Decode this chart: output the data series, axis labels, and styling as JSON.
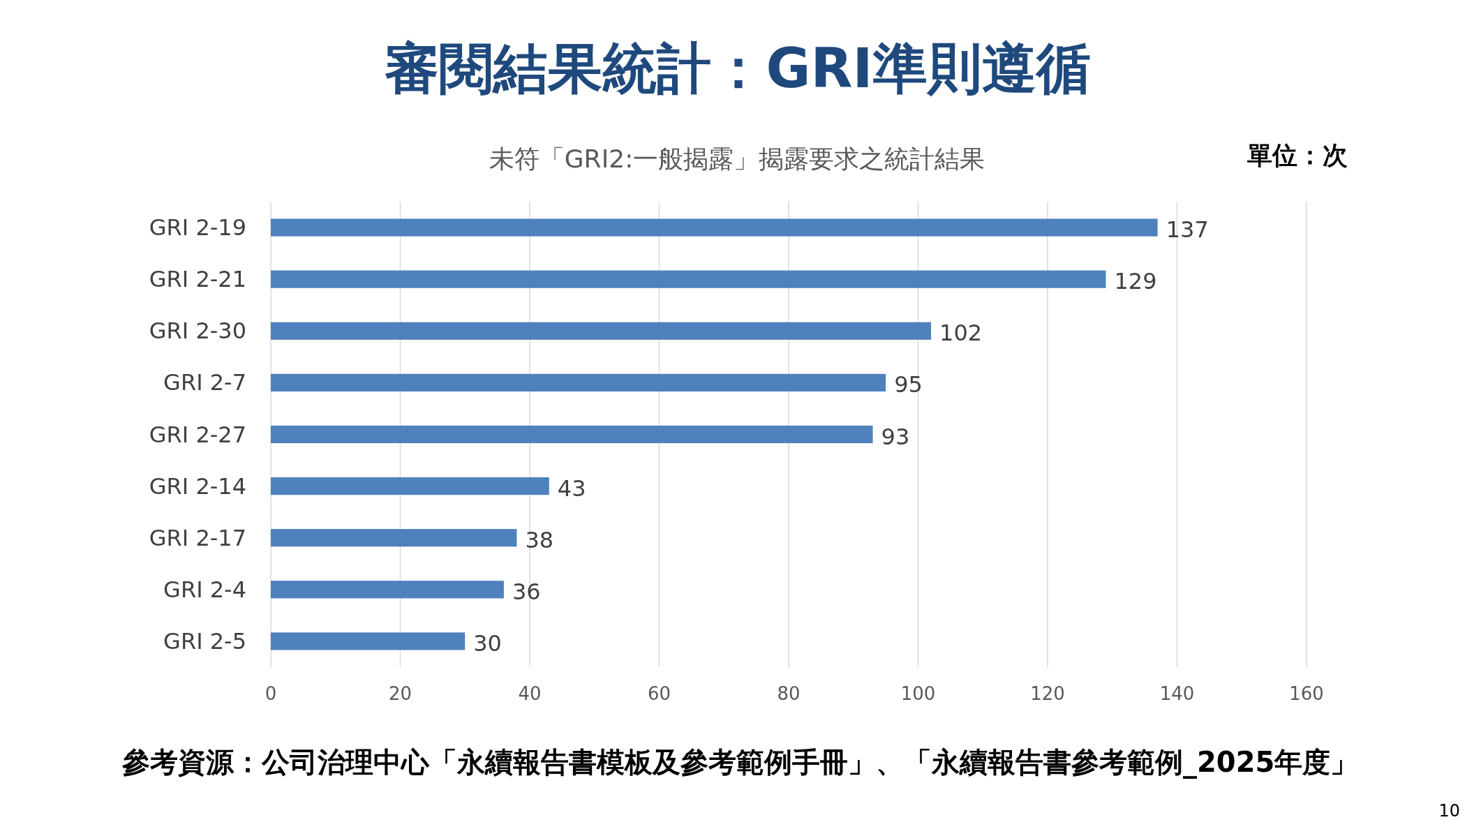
{
  "chart_data": {
    "type": "bar",
    "orientation": "horizontal",
    "title": "審閱結果統計：GRI準則遵循",
    "subtitle": "未符「GRI2:一般揭露」揭露要求之統計結果",
    "categories": [
      "GRI 2-19",
      "GRI 2-21",
      "GRI 2-30",
      "GRI 2-7",
      "GRI 2-27",
      "GRI 2-14",
      "GRI 2-17",
      "GRI 2-4",
      "GRI 2-5"
    ],
    "values": [
      137,
      129,
      102,
      95,
      93,
      43,
      38,
      36,
      30
    ],
    "color": "#4f81bd",
    "xlim": [
      0,
      160
    ],
    "xticks": [
      0,
      20,
      40,
      60,
      80,
      100,
      120,
      140,
      160
    ],
    "grid": "x",
    "data_labels": true,
    "annotations": [
      "單位：次",
      "參考資源：公司治理中心「永續報告書模板及參考範例手冊」、「永續報告書參考範例_2025年度」",
      "10"
    ]
  }
}
